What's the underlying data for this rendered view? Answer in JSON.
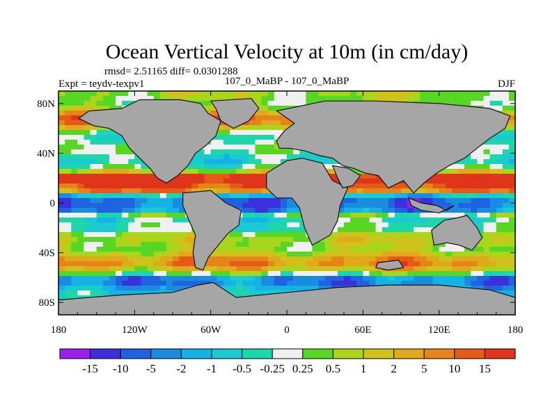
{
  "chart_data": {
    "type": "heatmap",
    "title": "Ocean Vertical Velocity at 10m (in cm/day)",
    "stats_line": "rmsd= 2.51165 diff= 0.0301288",
    "left_label": "Expt = teydv-texpv1",
    "center_label": "107_0_MaBP - 107_0_MaBP",
    "right_label": "DJF",
    "x_ticks": [
      "180",
      "120W",
      "60W",
      "0",
      "60E",
      "120E",
      "180"
    ],
    "x_tick_values": [
      -180,
      -120,
      -60,
      0,
      60,
      120,
      180
    ],
    "y_ticks": [
      "80N",
      "40N",
      "0",
      "40S",
      "80S"
    ],
    "y_tick_values": [
      80,
      40,
      0,
      -40,
      -80
    ],
    "xlim": [
      -180,
      180
    ],
    "ylim": [
      -90,
      90
    ],
    "levels": [
      "-15",
      "-10",
      "-5",
      "-2",
      "-1",
      "-0.5",
      "-0.25",
      "0.25",
      "0.5",
      "1",
      "2",
      "5",
      "10",
      "15"
    ],
    "colors": [
      "#9b1fe8",
      "#3c2fdc",
      "#1f63e0",
      "#1a8ce0",
      "#15b2e6",
      "#1ac9d2",
      "#1fd6aa",
      "#f0f0f0",
      "#58d624",
      "#a8d61c",
      "#cfc21a",
      "#e1a81c",
      "#e6841a",
      "#e45a17",
      "#e0351a"
    ],
    "land_color": "#a6a6a6"
  }
}
